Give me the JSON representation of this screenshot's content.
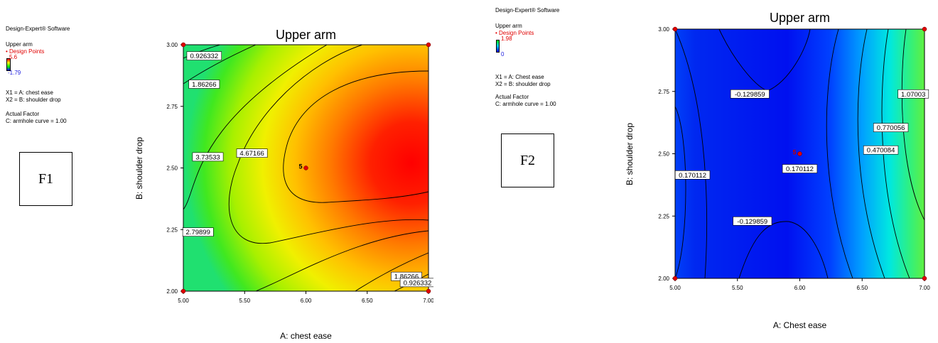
{
  "panel1": {
    "software": "Design-Expert® Software",
    "response": "Upper arm",
    "design_points_label": "Design Points",
    "max_label": "5.6",
    "min_label": "-1.79",
    "x1_def": "X1 = A: chest ease",
    "x2_def": "X2 = B: shoulder drop",
    "actual_factor_title": "Actual Factor",
    "actual_factor": "C: armhole curve = 1.00",
    "box_label": "F1",
    "center_point_label": "5"
  },
  "panel2": {
    "software": "Design-Expert® Software",
    "response": "Upper arm",
    "design_points_label": "Design Points",
    "max_label": "1.98",
    "min_label": "0",
    "x1_def": "X1 = A: Chest  ease",
    "x2_def": "X2 = B: shoulder drop",
    "actual_factor_title": "Actual Factor",
    "actual_factor": "C: armhole curve = 1.00",
    "box_label": "F2",
    "center_point_label": "5"
  },
  "colors": {
    "design_point": "#e00000",
    "high": "#ff0000",
    "low_f2": "#0018f0"
  },
  "chart_data": [
    {
      "type": "contour",
      "title": "Upper arm",
      "xlabel": "A: chest ease",
      "ylabel": "B: shoulder drop",
      "xlim": [
        5.0,
        7.0
      ],
      "ylim": [
        2.0,
        3.0
      ],
      "x_ticks": [
        "5.00",
        "5.50",
        "6.00",
        "6.50",
        "7.00"
      ],
      "y_ticks": [
        "2.00",
        "2.25",
        "2.50",
        "2.75",
        "3.00"
      ],
      "contour_labels": [
        "0.926332",
        "1.86266",
        "3.73533",
        "4.67166",
        "2.79899",
        "1.86266",
        "0.926332"
      ],
      "contour_levels": [
        0.926332,
        1.86266,
        2.79899,
        3.73533,
        4.67166
      ],
      "design_points": [
        [
          5.0,
          2.0
        ],
        [
          7.0,
          2.0
        ],
        [
          5.0,
          3.0
        ],
        [
          7.0,
          3.0
        ],
        [
          6.0,
          2.5
        ]
      ],
      "center_count": "5"
    },
    {
      "type": "contour",
      "title": "Upper arm",
      "xlabel": "A: Chest  ease",
      "ylabel": "B: shoulder drop",
      "xlim": [
        5.0,
        7.0
      ],
      "ylim": [
        2.0,
        3.0
      ],
      "x_ticks": [
        "5.00",
        "5.50",
        "6.00",
        "6.50",
        "7.00"
      ],
      "y_ticks": [
        "2.00",
        "2.25",
        "2.50",
        "2.75",
        "3.00"
      ],
      "contour_labels": [
        "-0.129859",
        "1.07003",
        "0.770056",
        "0.470084",
        "0.170112",
        "0.170112",
        "-0.129859"
      ],
      "contour_levels": [
        -0.129859,
        0.170112,
        0.470084,
        0.770056,
        1.07003
      ],
      "design_points": [
        [
          5.0,
          2.0
        ],
        [
          7.0,
          2.0
        ],
        [
          5.0,
          3.0
        ],
        [
          7.0,
          3.0
        ],
        [
          6.0,
          2.5
        ]
      ],
      "center_count": "5"
    }
  ]
}
